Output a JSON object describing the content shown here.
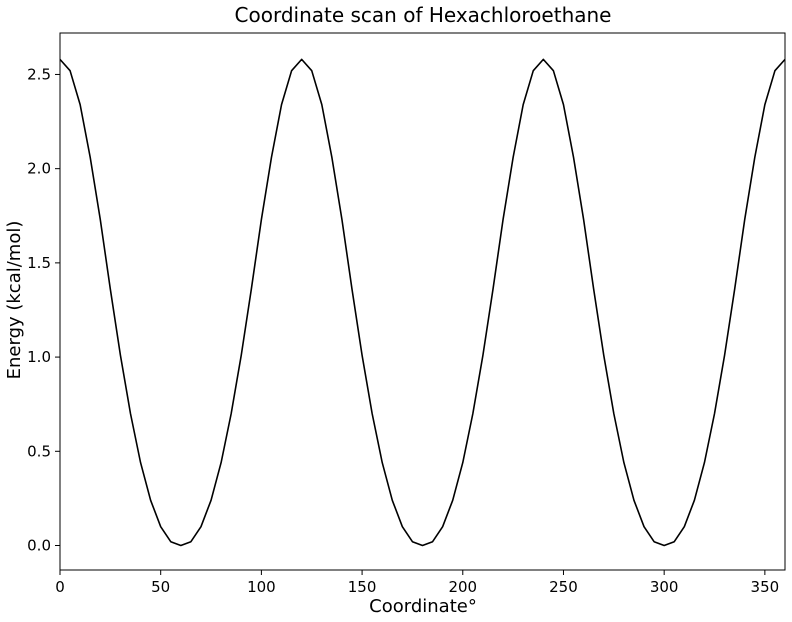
{
  "chart_data": {
    "type": "line",
    "title": "Coordinate scan of Hexachloroethane",
    "xlabel": "Coordinate°",
    "ylabel": "Energy (kcal/mol)",
    "xlim": [
      0,
      360
    ],
    "ylim": [
      -0.13,
      2.72
    ],
    "xticks": [
      0,
      50,
      100,
      150,
      200,
      250,
      300,
      350
    ],
    "xtick_labels": [
      "0",
      "50",
      "100",
      "150",
      "200",
      "250",
      "300",
      "350"
    ],
    "yticks": [
      0.0,
      0.5,
      1.0,
      1.5,
      2.0,
      2.5
    ],
    "ytick_labels": [
      "0.0",
      "0.5",
      "1.0",
      "1.5",
      "2.0",
      "2.5"
    ],
    "grid": false,
    "series": [
      {
        "color": "#000000",
        "x": [
          0,
          5,
          10,
          15,
          20,
          25,
          30,
          35,
          40,
          45,
          50,
          55,
          60,
          65,
          70,
          75,
          80,
          85,
          90,
          95,
          100,
          105,
          110,
          115,
          120,
          125,
          130,
          135,
          140,
          145,
          150,
          155,
          160,
          165,
          170,
          175,
          180,
          185,
          190,
          195,
          200,
          205,
          210,
          215,
          220,
          225,
          230,
          235,
          240,
          245,
          250,
          255,
          260,
          265,
          270,
          275,
          280,
          285,
          290,
          295,
          300,
          305,
          310,
          315,
          320,
          325,
          330,
          335,
          340,
          345,
          350,
          355,
          360
        ],
        "values": [
          2.58,
          2.52,
          2.34,
          2.06,
          1.73,
          1.36,
          1.01,
          0.7,
          0.44,
          0.24,
          0.1,
          0.02,
          0.0,
          0.02,
          0.1,
          0.24,
          0.44,
          0.7,
          1.01,
          1.36,
          1.73,
          2.06,
          2.34,
          2.52,
          2.58,
          2.52,
          2.34,
          2.06,
          1.73,
          1.36,
          1.01,
          0.7,
          0.44,
          0.24,
          0.1,
          0.02,
          0.0,
          0.02,
          0.1,
          0.24,
          0.44,
          0.7,
          1.01,
          1.36,
          1.73,
          2.06,
          2.34,
          2.52,
          2.58,
          2.52,
          2.34,
          2.06,
          1.73,
          1.36,
          1.01,
          0.7,
          0.44,
          0.24,
          0.1,
          0.02,
          0.0,
          0.02,
          0.1,
          0.24,
          0.44,
          0.7,
          1.01,
          1.36,
          1.73,
          2.06,
          2.34,
          2.52,
          2.58
        ]
      }
    ]
  }
}
